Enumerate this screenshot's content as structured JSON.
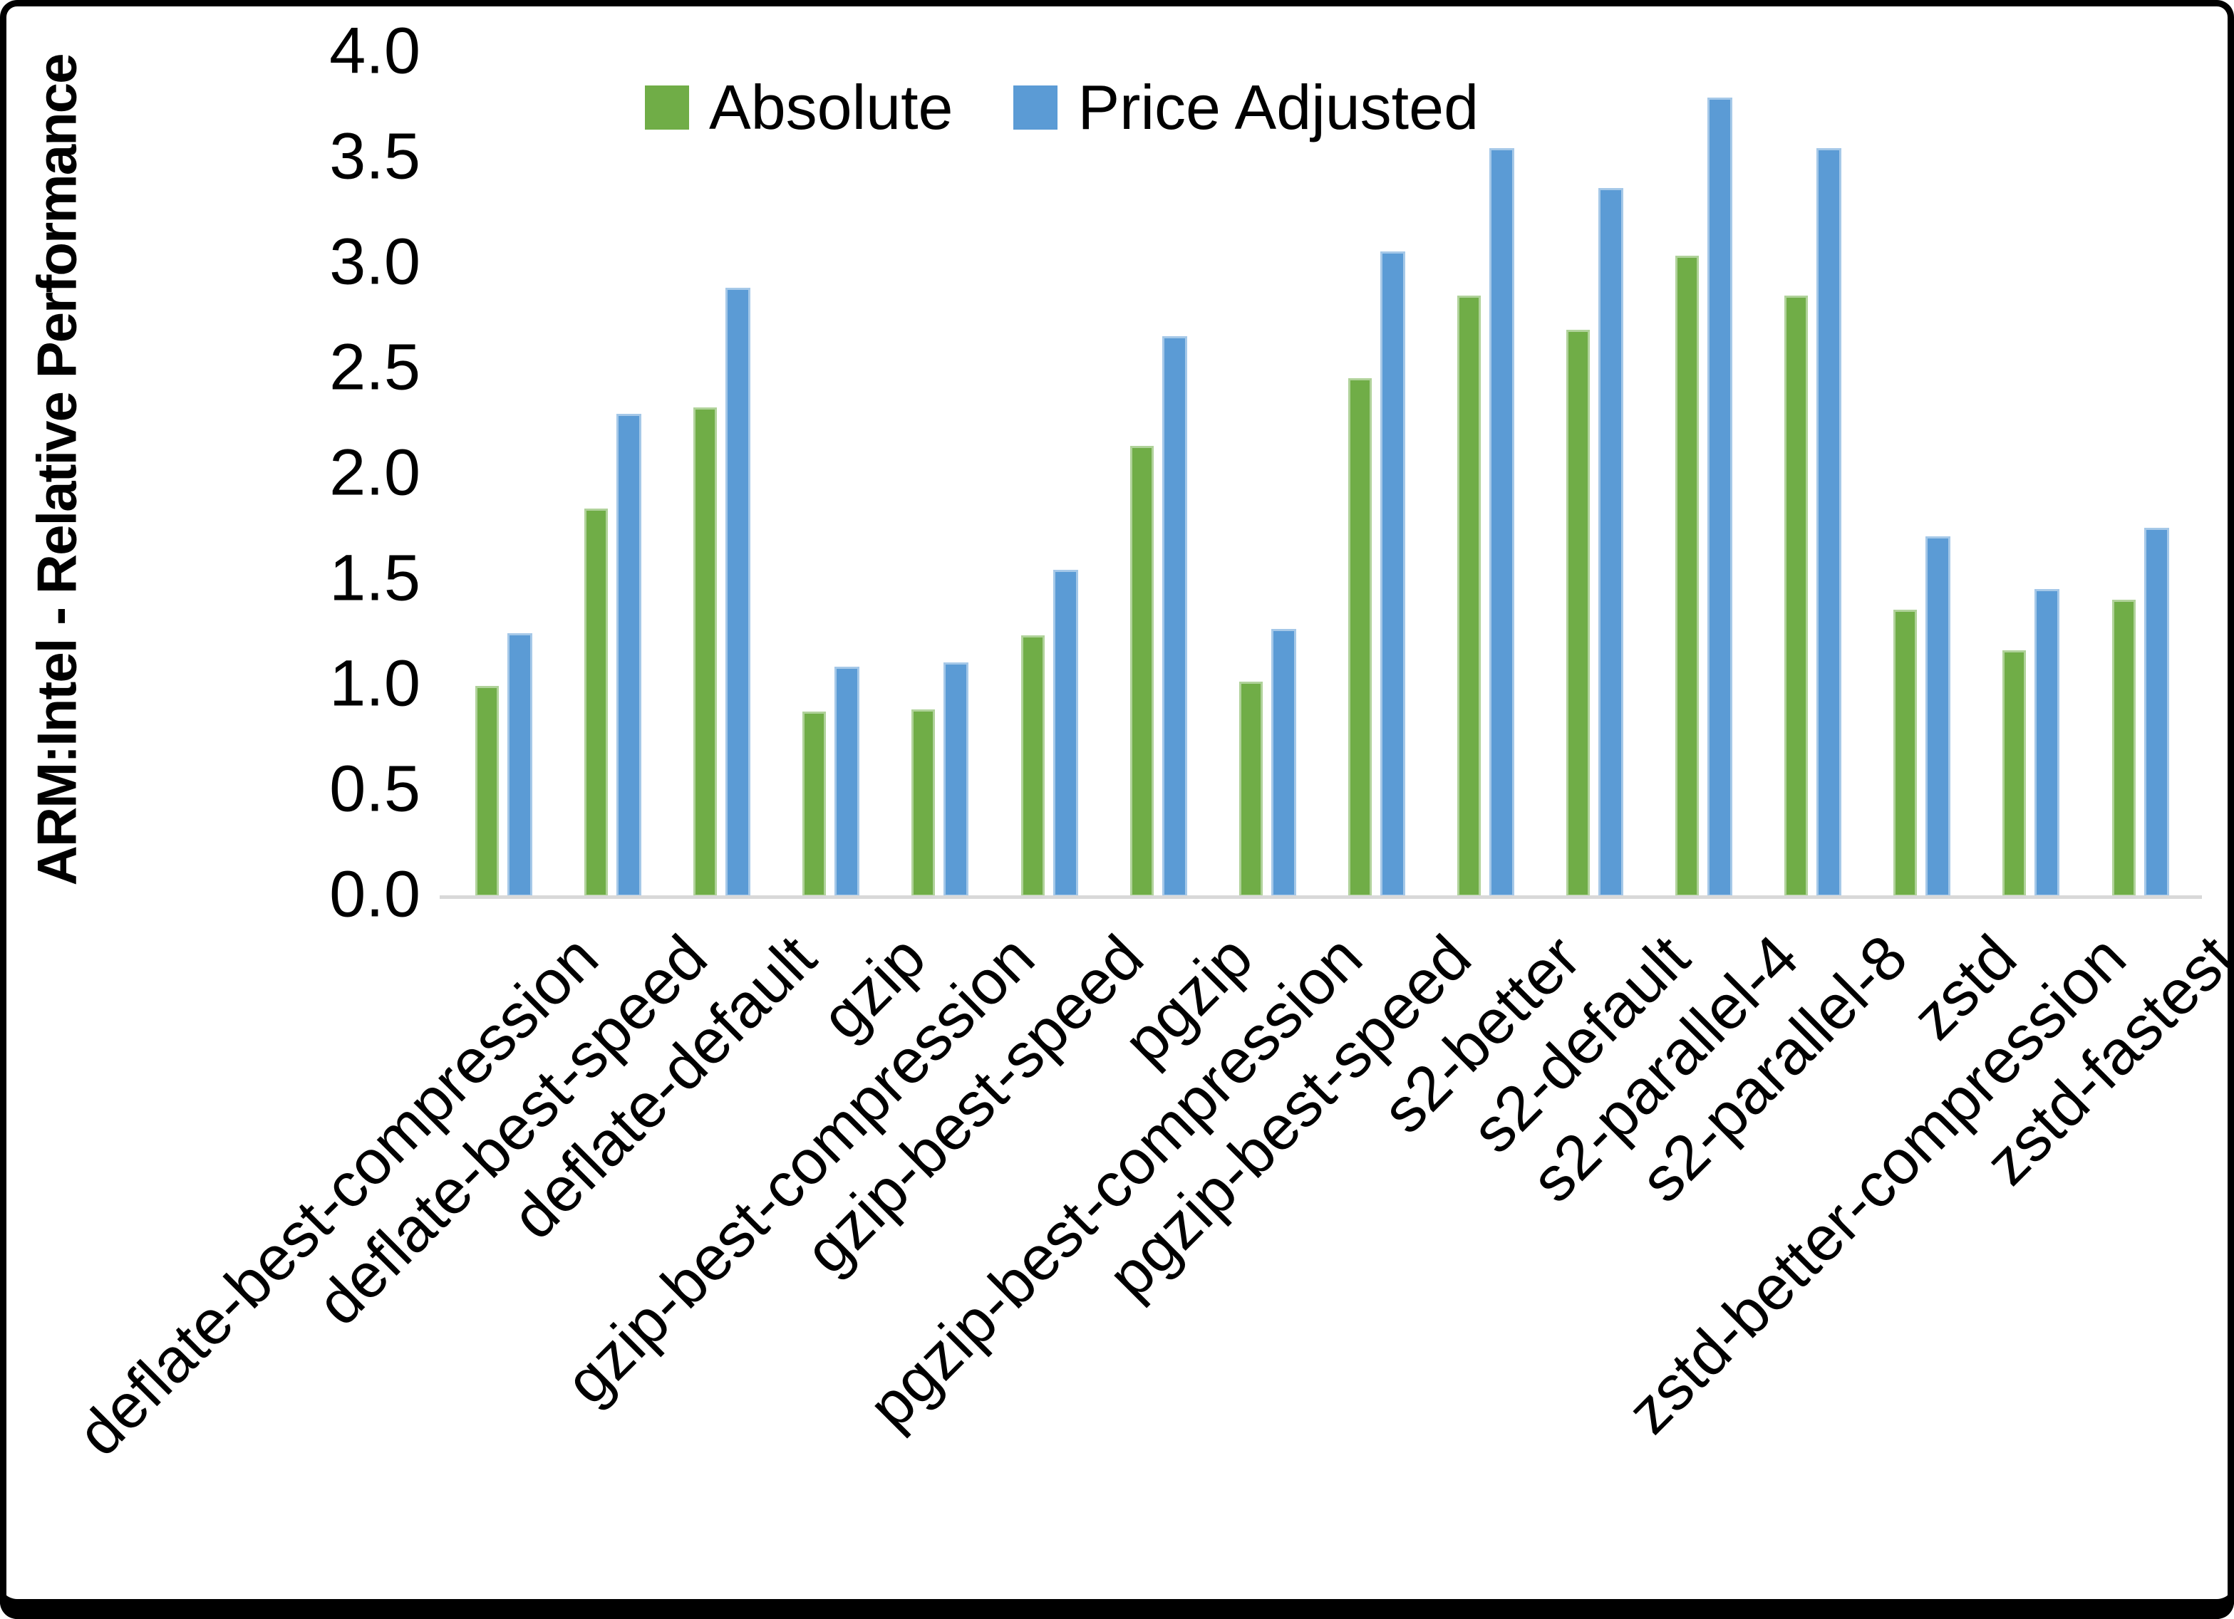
{
  "chart_data": {
    "type": "bar",
    "title": "",
    "ylabel": "ARM:Intel - Relative Performance",
    "xlabel": "",
    "ylim": [
      0.0,
      4.0
    ],
    "ytick_step": 0.5,
    "yticks": [
      "0.0",
      "0.5",
      "1.0",
      "1.5",
      "2.0",
      "2.5",
      "3.0",
      "3.5",
      "4.0"
    ],
    "grid": false,
    "legend_position": "top-center",
    "categories": [
      "deflate-best-compression",
      "deflate-best-speed",
      "deflate-default",
      "gzip",
      "gzip-best-compression",
      "gzip-best-speed",
      "pgzip",
      "pgzip-best-compression",
      "pgzip-best-speed",
      "s2-better",
      "s2-default",
      "s2-parallel-4",
      "s2-parallel-8",
      "zstd",
      "zstd-better-compression",
      "zstd-fastest"
    ],
    "series": [
      {
        "name": "Absolute",
        "color": "#70AD47",
        "values": [
          1.0,
          1.84,
          2.32,
          0.88,
          0.89,
          1.24,
          2.14,
          1.02,
          2.46,
          2.85,
          2.69,
          3.04,
          2.85,
          1.36,
          1.17,
          1.41
        ]
      },
      {
        "name": "Price Adjusted",
        "color": "#5B9BD5",
        "values": [
          1.25,
          2.29,
          2.89,
          1.09,
          1.11,
          1.55,
          2.66,
          1.27,
          3.06,
          3.55,
          3.36,
          3.79,
          3.55,
          1.71,
          1.46,
          1.75
        ]
      }
    ]
  },
  "colors": {
    "background": "#FFFFFF",
    "axis_line": "#D9D9D9",
    "text": "#000000",
    "frame_border": "#000000"
  }
}
